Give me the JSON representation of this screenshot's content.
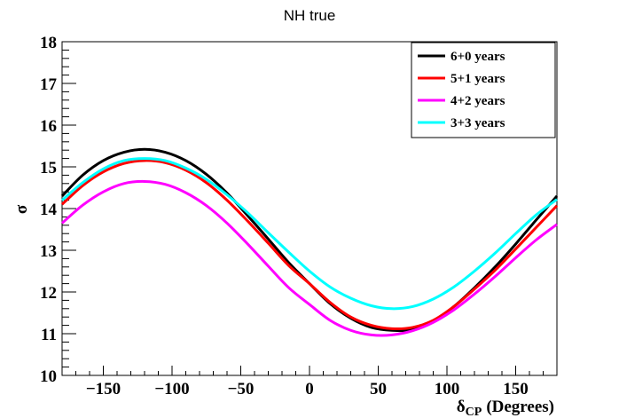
{
  "chart_data": {
    "type": "line",
    "title": "NH true",
    "xlabel_main": "δ",
    "xlabel_sub": "CP",
    "xlabel_suffix": "(Degrees)",
    "ylabel": "σ",
    "xlim": [
      -180,
      180
    ],
    "ylim": [
      10,
      18
    ],
    "xticks": [
      -150,
      -100,
      -50,
      0,
      50,
      100,
      150
    ],
    "xtick_labels": [
      "−150",
      "−100",
      "−50",
      "0",
      "50",
      "100",
      "150"
    ],
    "yticks": [
      10,
      11,
      12,
      13,
      14,
      15,
      16,
      17,
      18
    ],
    "ytick_labels": [
      "10",
      "11",
      "12",
      "13",
      "14",
      "15",
      "16",
      "17",
      "18"
    ],
    "legend_position": "top-right",
    "x": [
      -180,
      -165,
      -150,
      -135,
      -120,
      -105,
      -90,
      -75,
      -60,
      -45,
      -30,
      -15,
      0,
      15,
      30,
      45,
      60,
      75,
      90,
      105,
      120,
      135,
      150,
      165,
      180
    ],
    "series": [
      {
        "name": "6+0 years",
        "color": "#000000",
        "values": [
          14.3,
          14.8,
          15.15,
          15.35,
          15.42,
          15.35,
          15.15,
          14.82,
          14.37,
          13.83,
          13.27,
          12.7,
          12.2,
          11.72,
          11.37,
          11.15,
          11.08,
          11.1,
          11.3,
          11.65,
          12.1,
          12.6,
          13.15,
          13.73,
          14.3
        ]
      },
      {
        "name": "5+1 years",
        "color": "#ff0000",
        "values": [
          14.1,
          14.55,
          14.88,
          15.08,
          15.15,
          15.1,
          14.92,
          14.62,
          14.2,
          13.7,
          13.17,
          12.63,
          12.2,
          11.75,
          11.4,
          11.2,
          11.12,
          11.15,
          11.32,
          11.65,
          12.07,
          12.52,
          13.03,
          13.55,
          14.07
        ]
      },
      {
        "name": "4+2 years",
        "color": "#ff00ff",
        "values": [
          13.65,
          14.08,
          14.4,
          14.6,
          14.65,
          14.58,
          14.38,
          14.07,
          13.65,
          13.15,
          12.62,
          12.1,
          11.7,
          11.32,
          11.08,
          10.97,
          10.97,
          11.07,
          11.27,
          11.57,
          11.95,
          12.37,
          12.82,
          13.25,
          13.62
        ]
      },
      {
        "name": "3+3 years",
        "color": "#00ffff",
        "values": [
          14.2,
          14.62,
          14.95,
          15.15,
          15.2,
          15.15,
          14.97,
          14.7,
          14.33,
          13.9,
          13.42,
          12.95,
          12.5,
          12.12,
          11.85,
          11.67,
          11.6,
          11.65,
          11.83,
          12.12,
          12.5,
          12.93,
          13.4,
          13.85,
          14.22
        ]
      }
    ]
  }
}
